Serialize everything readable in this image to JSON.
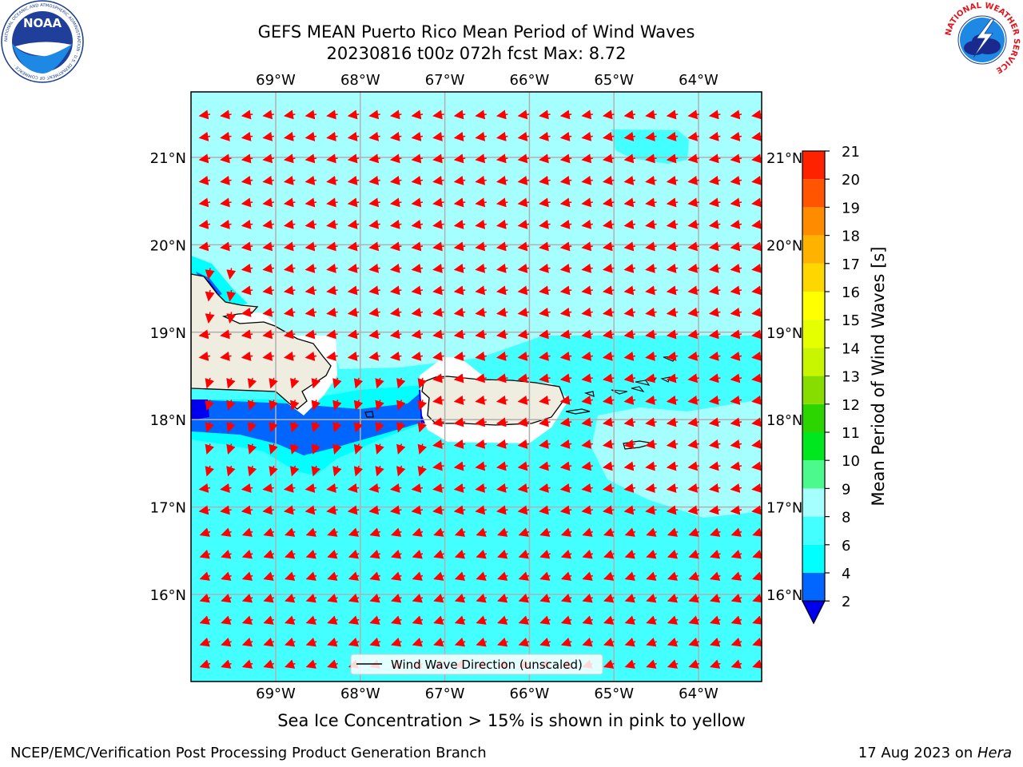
{
  "title": {
    "line1": "GEFS MEAN Puerto Rico Mean Period of Wind Waves",
    "line2": "20230816 t00z 072h fcst   Max: 8.72"
  },
  "map": {
    "lon_labels": [
      "69°W",
      "68°W",
      "67°W",
      "66°W",
      "65°W",
      "64°W"
    ],
    "lat_labels": [
      "21°N",
      "20°N",
      "19°N",
      "18°N",
      "17°N",
      "16°N"
    ],
    "lon_values": [
      -69,
      -68,
      -67,
      -66,
      -65,
      -64
    ],
    "lat_values": [
      21,
      20,
      19,
      18,
      17,
      16
    ],
    "legend_label": "Wind Wave Direction (unscaled)",
    "arrow_color": "#ff0000",
    "land_color": "#efeddf"
  },
  "colorbar": {
    "label": "Mean Period of Wind Waves [s]",
    "ticks": [
      "2",
      "4",
      "6",
      "8",
      "9",
      "10",
      "11",
      "12",
      "13",
      "14",
      "15",
      "16",
      "17",
      "18",
      "19",
      "20",
      "21"
    ],
    "colors": [
      "#0066ff",
      "#00ffff",
      "#44ffff",
      "#a6ffff",
      "#4cf98c",
      "#00e61f",
      "#2cd400",
      "#88dd00",
      "#c8f500",
      "#e6ff00",
      "#ffff00",
      "#ffd700",
      "#ffb300",
      "#ff8c00",
      "#ff5500",
      "#ff2200"
    ],
    "under_color": "#0000ee"
  },
  "caption": "Sea Ice Concentration > 15% is shown in pink to yellow",
  "footer": {
    "left": "NCEP/EMC/Verification Post Processing Product Generation Branch",
    "right_prefix": "17 Aug 2023 on ",
    "right_host": "Hera"
  },
  "logos": {
    "noaa_text": "NOAA",
    "noaa_ring_text": "NATIONAL OCEANIC AND ATMOSPHERIC ADMINISTRATION · U.S. DEPARTMENT OF COMMERCE ·",
    "nws_ring_text": "NATIONAL WEATHER SERVICE"
  }
}
